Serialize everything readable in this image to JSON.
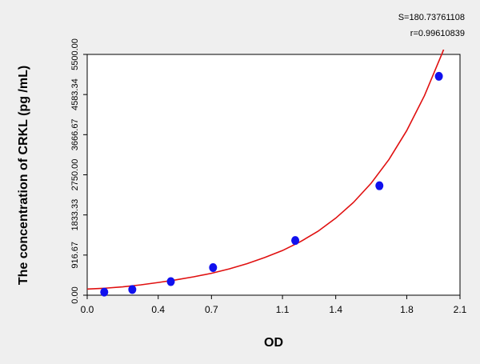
{
  "chart_data": {
    "type": "scatter",
    "title": "",
    "xlabel": "OD",
    "ylabel": "The concentration of CRKL (pg /mL)",
    "xlim": [
      0.0,
      2.1
    ],
    "ylim": [
      0.0,
      5500.0
    ],
    "x_ticks": [
      "0.0",
      "0.4",
      "0.7",
      "1.1",
      "1.4",
      "1.8",
      "2.1"
    ],
    "y_ticks": [
      "0.00",
      "916.67",
      "1833.33",
      "2750.00",
      "3666.67",
      "4583.34",
      "5500.00"
    ],
    "points": {
      "x": [
        0.096,
        0.254,
        0.471,
        0.709,
        1.172,
        1.646,
        1.981
      ],
      "y": [
        70,
        130,
        310,
        630,
        1250,
        2500,
        5000
      ],
      "color": "#1010ee"
    },
    "fit_curve": {
      "color": "#e01010",
      "x": [
        0.0,
        0.1,
        0.2,
        0.3,
        0.4,
        0.5,
        0.6,
        0.7,
        0.8,
        0.9,
        1.0,
        1.1,
        1.2,
        1.3,
        1.4,
        1.5,
        1.6,
        1.7,
        1.8,
        1.9,
        2.0,
        2.03
      ],
      "y": [
        140,
        160,
        190,
        235,
        290,
        350,
        420,
        500,
        600,
        720,
        860,
        1020,
        1220,
        1460,
        1760,
        2120,
        2560,
        3100,
        3760,
        4560,
        5530,
        5850
      ]
    },
    "annotations": [
      "S=180.73761108",
      "r=0.99610839"
    ],
    "grid": false
  }
}
